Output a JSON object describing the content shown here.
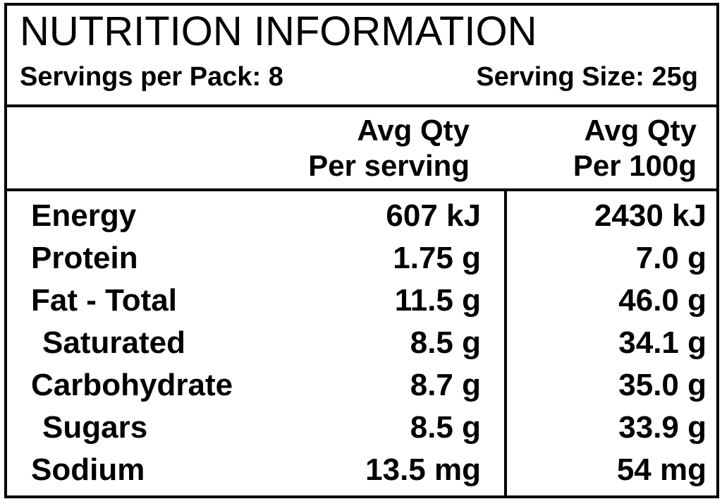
{
  "panel": {
    "title": "NUTRITION INFORMATION",
    "servings_per_pack": "Servings per Pack: 8",
    "serving_size": "Serving Size: 25g"
  },
  "columns": {
    "per_serving": {
      "line1": "Avg Qty",
      "line2": "Per serving"
    },
    "per_100g": {
      "line1": "Avg Qty",
      "line2": "Per 100g"
    }
  },
  "rows": [
    {
      "name": "Energy",
      "per_serving": "607 kJ",
      "per_100g": "2430 kJ"
    },
    {
      "name": "Protein",
      "per_serving": "1.75 g",
      "per_100g": "7.0 g"
    },
    {
      "name": "Fat - Total",
      "per_serving": "11.5 g",
      "per_100g": "46.0 g"
    },
    {
      "name": "Saturated",
      "per_serving": "8.5 g",
      "per_100g": "34.1 g"
    },
    {
      "name": "Carbohydrate",
      "per_serving": "8.7 g",
      "per_100g": "35.0 g"
    },
    {
      "name": "Sugars",
      "per_serving": "8.5 g",
      "per_100g": "33.9 g"
    },
    {
      "name": "Sodium",
      "per_serving": "13.5 mg",
      "per_100g": "54 mg"
    }
  ]
}
